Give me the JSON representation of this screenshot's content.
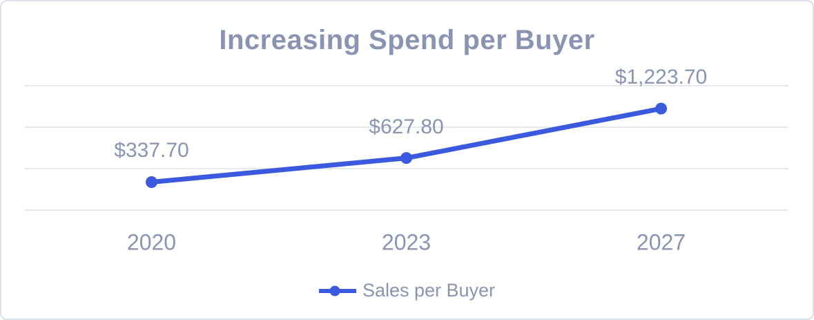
{
  "card": {
    "background": "#ffffff",
    "border_color": "#d9e0e8"
  },
  "chart_data": {
    "type": "line",
    "title": "Increasing Spend per Buyer",
    "categories": [
      "2020",
      "2023",
      "2027"
    ],
    "series": [
      {
        "name": "Sales per Buyer",
        "values": [
          337.7,
          627.8,
          1223.7
        ],
        "color": "#3a59df"
      }
    ],
    "data_labels": [
      "$337.70",
      "$627.80",
      "$1,223.70"
    ],
    "xlabel": "",
    "ylabel": "",
    "ylim": [
      0,
      1500
    ],
    "grid_step": 500,
    "grid": "horizontal-only",
    "y_axis_labels_visible": false,
    "legend_position": "bottom",
    "colors": {
      "line": "#3a59df",
      "marker": "#3a59df",
      "text": "#8a93b2",
      "gridline": "#e5e8ef"
    }
  }
}
